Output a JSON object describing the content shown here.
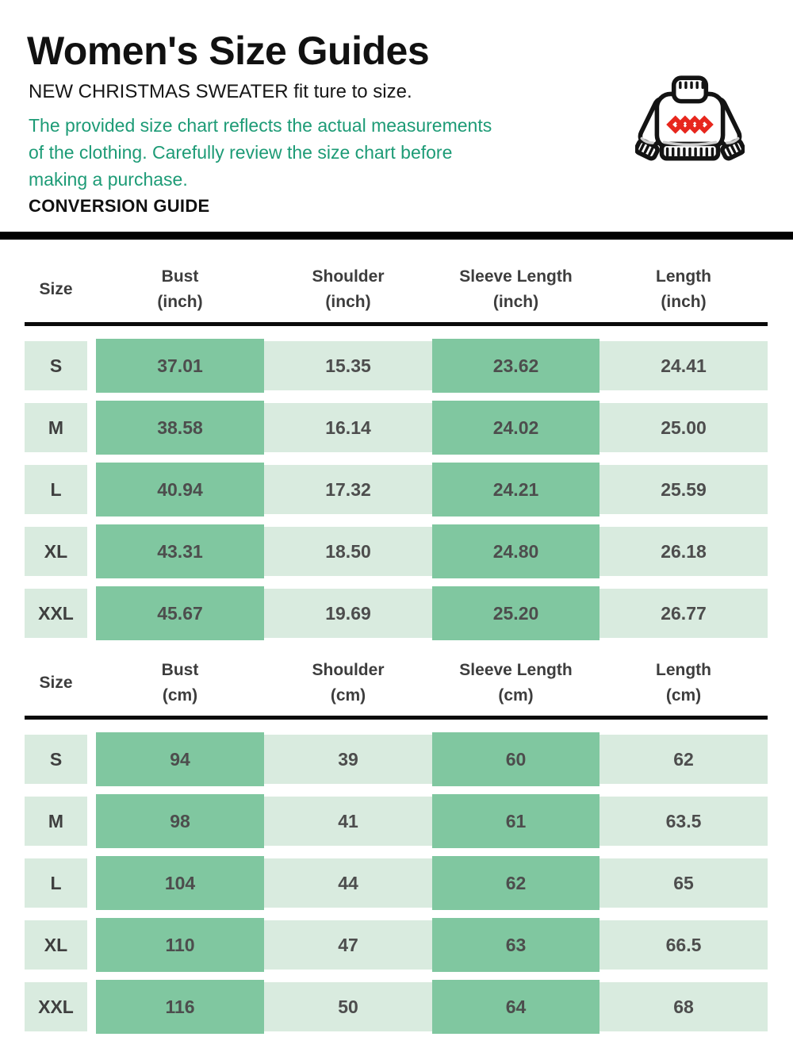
{
  "page": {
    "title": "Women's Size Guides",
    "fit_note": "NEW CHRISTMAS SWEATER fit ture to size.",
    "note_lines": [
      "The provided size chart reflects the actual measurements",
      "of the clothing. Carefully review the size chart before",
      "making a purchase."
    ],
    "conversion_label": "CONVERSION GUIDE"
  },
  "colors": {
    "note_green": "#1D9B76",
    "cell_dark_green": "#80C7A0",
    "cell_light_green": "#D9EBDF",
    "divider_black": "#000000",
    "value_text": "#4D4D4D",
    "diamond_red": "#E7271D"
  },
  "icons": {
    "sweater": "christmas-sweater-icon"
  },
  "tables": [
    {
      "id": "inch",
      "columns": [
        {
          "name": "Size",
          "unit": ""
        },
        {
          "name": "Bust",
          "unit": "(inch)"
        },
        {
          "name": "Shoulder",
          "unit": "(inch)"
        },
        {
          "name": "Sleeve Length",
          "unit": "(inch)"
        },
        {
          "name": "Length",
          "unit": "(inch)"
        }
      ],
      "rows": [
        {
          "size": "S",
          "values": [
            "37.01",
            "15.35",
            "23.62",
            "24.41"
          ]
        },
        {
          "size": "M",
          "values": [
            "38.58",
            "16.14",
            "24.02",
            "25.00"
          ]
        },
        {
          "size": "L",
          "values": [
            "40.94",
            "17.32",
            "24.21",
            "25.59"
          ]
        },
        {
          "size": "XL",
          "values": [
            "43.31",
            "18.50",
            "24.80",
            "26.18"
          ]
        },
        {
          "size": "XXL",
          "values": [
            "45.67",
            "19.69",
            "25.20",
            "26.77"
          ]
        }
      ]
    },
    {
      "id": "cm",
      "columns": [
        {
          "name": "Size",
          "unit": ""
        },
        {
          "name": "Bust",
          "unit": "(cm)"
        },
        {
          "name": "Shoulder",
          "unit": "(cm)"
        },
        {
          "name": "Sleeve Length",
          "unit": "(cm)"
        },
        {
          "name": "Length",
          "unit": "(cm)"
        }
      ],
      "rows": [
        {
          "size": "S",
          "values": [
            "94",
            "39",
            "60",
            "62"
          ]
        },
        {
          "size": "M",
          "values": [
            "98",
            "41",
            "61",
            "63.5"
          ]
        },
        {
          "size": "L",
          "values": [
            "104",
            "44",
            "62",
            "65"
          ]
        },
        {
          "size": "XL",
          "values": [
            "110",
            "47",
            "63",
            "66.5"
          ]
        },
        {
          "size": "XXL",
          "values": [
            "116",
            "50",
            "64",
            "68"
          ]
        }
      ]
    }
  ]
}
